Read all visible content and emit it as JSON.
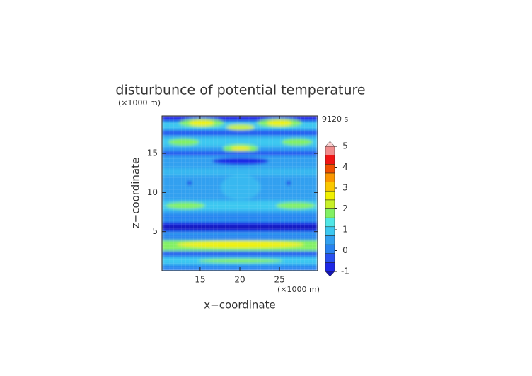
{
  "chart_data": {
    "type": "contour",
    "title": "disturbunce of potential temperature",
    "time_label": "9120 s",
    "x_label": "x−coordinate",
    "y_label": "z−coordinate",
    "x_unit": "(×1000 m)",
    "y_unit": "(×1000 m)",
    "xlim": [
      10.2,
      29.8
    ],
    "xticks": [
      15,
      20,
      25
    ],
    "ylim": [
      0,
      19.8
    ],
    "yticks": [
      5,
      10,
      15
    ],
    "colorbar": {
      "ticks": [
        -1,
        0,
        1,
        2,
        3,
        4,
        5
      ],
      "colors": [
        "#1414b4",
        "#1e28e6",
        "#2850f0",
        "#2882f0",
        "#32a0f0",
        "#3cc8f0",
        "#50e6e6",
        "#82f064",
        "#c8f028",
        "#f0f000",
        "#fac800",
        "#fa9600",
        "#f05000",
        "#f01414",
        "#f08c8c",
        "#fad2d2"
      ]
    }
  }
}
